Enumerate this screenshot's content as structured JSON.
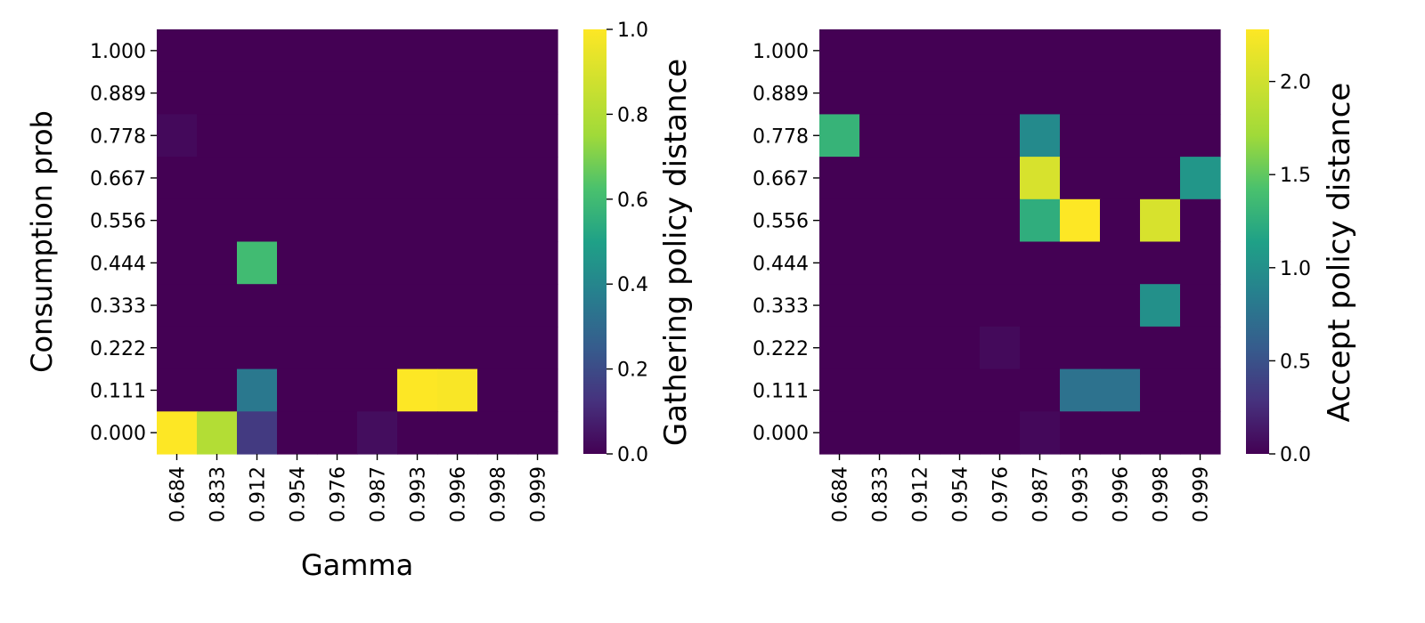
{
  "chart_data": [
    {
      "type": "heatmap",
      "xlabel": "Gamma",
      "ylabel": "Consumption prob",
      "x_categories": [
        "0.684",
        "0.833",
        "0.912",
        "0.954",
        "0.976",
        "0.987",
        "0.993",
        "0.996",
        "0.998",
        "0.999"
      ],
      "y_categories": [
        "1.000",
        "0.889",
        "0.778",
        "0.667",
        "0.556",
        "0.444",
        "0.333",
        "0.222",
        "0.111",
        "0.000"
      ],
      "values": [
        [
          0,
          0,
          0,
          0,
          0,
          0,
          0,
          0,
          0,
          0
        ],
        [
          0,
          0,
          0,
          0,
          0,
          0,
          0,
          0,
          0,
          0
        ],
        [
          0.02,
          0,
          0,
          0,
          0,
          0,
          0,
          0,
          0,
          0
        ],
        [
          0,
          0,
          0,
          0,
          0,
          0,
          0,
          0,
          0,
          0
        ],
        [
          0,
          0,
          0,
          0,
          0,
          0,
          0,
          0,
          0,
          0
        ],
        [
          0,
          0,
          0.6,
          0,
          0,
          0,
          0,
          0,
          0,
          0
        ],
        [
          0,
          0,
          0,
          0,
          0,
          0,
          0,
          0,
          0,
          0
        ],
        [
          0,
          0,
          0,
          0,
          0,
          0,
          0,
          0,
          0,
          0
        ],
        [
          0,
          0,
          0.35,
          0,
          0,
          0,
          1.0,
          0.99,
          0,
          0
        ],
        [
          1.0,
          0.8,
          0.15,
          0,
          0,
          0.03,
          0,
          0,
          0,
          0
        ]
      ],
      "colorbar": {
        "label": "Gathering policy distance",
        "min": 0.0,
        "max": 1.0,
        "ticks": [
          0.0,
          0.2,
          0.4,
          0.6,
          0.8,
          1.0
        ],
        "tick_labels": [
          "0.0",
          "0.2",
          "0.4",
          "0.6",
          "0.8",
          "1.0"
        ]
      },
      "colormap": "viridis"
    },
    {
      "type": "heatmap",
      "xlabel": "",
      "ylabel": "",
      "x_categories": [
        "0.684",
        "0.833",
        "0.912",
        "0.954",
        "0.976",
        "0.987",
        "0.993",
        "0.996",
        "0.998",
        "0.999"
      ],
      "y_categories": [
        "1.000",
        "0.889",
        "0.778",
        "0.667",
        "0.556",
        "0.444",
        "0.333",
        "0.222",
        "0.111",
        "0.000"
      ],
      "values": [
        [
          0,
          0,
          0,
          0,
          0,
          0,
          0,
          0,
          0,
          0
        ],
        [
          0,
          0,
          0,
          0,
          0,
          0,
          0,
          0,
          0,
          0
        ],
        [
          1.3,
          0,
          0,
          0,
          0,
          0.95,
          0,
          0,
          0,
          0
        ],
        [
          0,
          0,
          0,
          0,
          0,
          2.05,
          0,
          0,
          0,
          1.05
        ],
        [
          0,
          0,
          0,
          0,
          0,
          1.25,
          2.28,
          0,
          2.05,
          0
        ],
        [
          0,
          0,
          0,
          0,
          0,
          0,
          0,
          0,
          0,
          0
        ],
        [
          0,
          0,
          0,
          0,
          0,
          0,
          0,
          0,
          1.0,
          0
        ],
        [
          0,
          0,
          0,
          0,
          0.05,
          0,
          0,
          0,
          0,
          0
        ],
        [
          0,
          0,
          0,
          0,
          0,
          0,
          0.75,
          0.75,
          0,
          0
        ],
        [
          0,
          0,
          0,
          0,
          0,
          0.04,
          0,
          0,
          0,
          0
        ]
      ],
      "colorbar": {
        "label": "Accept policy distance",
        "min": 0.0,
        "max": 2.28,
        "ticks": [
          0.0,
          0.5,
          1.0,
          1.5,
          2.0
        ],
        "tick_labels": [
          "0.0",
          "0.5",
          "1.0",
          "1.5",
          "2.0"
        ]
      },
      "colormap": "viridis"
    }
  ]
}
